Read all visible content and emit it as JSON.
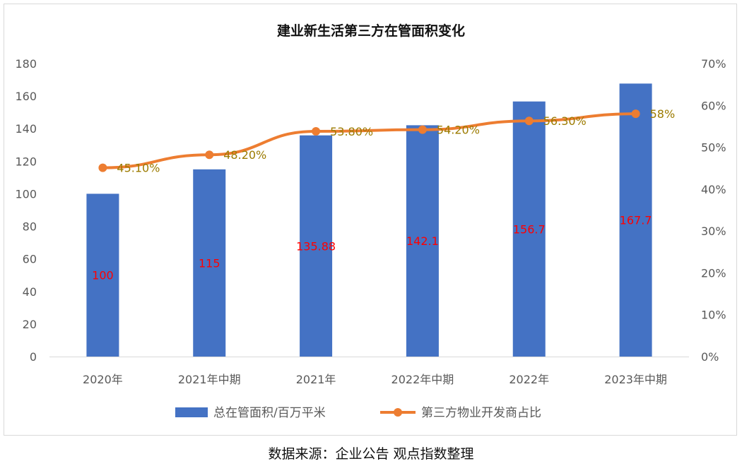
{
  "chart_data": {
    "type": "bar+line",
    "title": "建业新生活第三方在管面积变化",
    "categories": [
      "2020年",
      "2021年中期",
      "2021年",
      "2022年中期",
      "2022年",
      "2023年中期"
    ],
    "series": [
      {
        "name": "总在管面积/百万平米",
        "type": "bar",
        "axis": "left",
        "values": [
          100,
          115,
          135.88,
          142.1,
          156.7,
          167.7
        ],
        "labels": [
          "100",
          "115",
          "135.88",
          "142.1",
          "156.7",
          "167.7"
        ],
        "color": "#4472c4",
        "label_color": "#ff0000"
      },
      {
        "name": "第三方物业开发商占比",
        "type": "line",
        "axis": "right",
        "values": [
          45.1,
          48.2,
          53.8,
          54.2,
          56.3,
          58
        ],
        "labels": [
          "45.10%",
          "48.20%",
          "53.80%",
          "54.20%",
          "56.30%",
          "58%"
        ],
        "color": "#ed7d31",
        "label_color": "#9c7b00"
      }
    ],
    "y_left": {
      "min": 0,
      "max": 180,
      "step": 20,
      "ticks": [
        "0",
        "20",
        "40",
        "60",
        "80",
        "100",
        "120",
        "140",
        "160",
        "180"
      ]
    },
    "y_right": {
      "min": 0,
      "max": 70,
      "step": 10,
      "ticks": [
        "0%",
        "10%",
        "20%",
        "30%",
        "40%",
        "50%",
        "60%",
        "70%"
      ]
    },
    "grid": false,
    "legend": "bottom"
  },
  "source_text": "数据来源：企业公告 观点指数整理"
}
